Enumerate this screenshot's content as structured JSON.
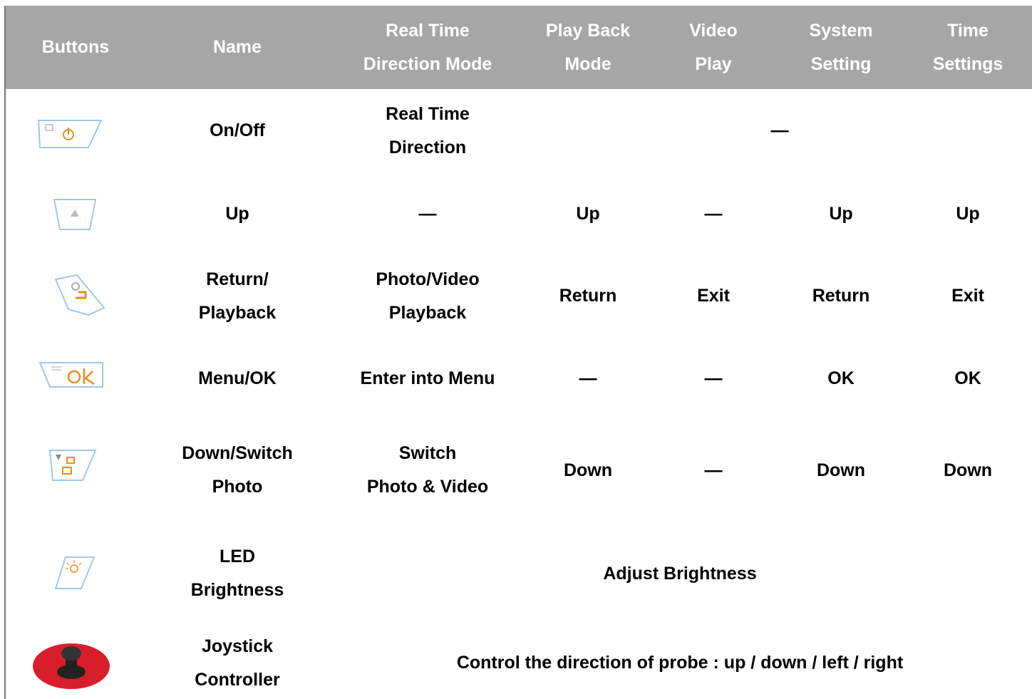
{
  "table": {
    "header": [
      [
        "Buttons"
      ],
      [
        "Name"
      ],
      [
        "Real Time",
        "Direction Mode"
      ],
      [
        "Play Back",
        "Mode"
      ],
      [
        "Video",
        "Play"
      ],
      [
        "System",
        "Setting"
      ],
      [
        "Time",
        "Settings"
      ]
    ],
    "rows": [
      {
        "name": [
          "On/Off"
        ],
        "cells": [
          {
            "text": [
              "Real Time",
              "Direction"
            ]
          },
          {
            "text": [
              "—"
            ],
            "span": 4
          }
        ]
      },
      {
        "name": [
          "Up"
        ],
        "cells": [
          {
            "text": [
              "—"
            ]
          },
          {
            "text": [
              "Up"
            ]
          },
          {
            "text": [
              "—"
            ]
          },
          {
            "text": [
              "Up"
            ]
          },
          {
            "text": [
              "Up"
            ]
          }
        ]
      },
      {
        "name": [
          "Return/",
          "Playback"
        ],
        "cells": [
          {
            "text": [
              "Photo/Video",
              "Playback"
            ]
          },
          {
            "text": [
              "Return"
            ]
          },
          {
            "text": [
              "Exit"
            ]
          },
          {
            "text": [
              "Return"
            ]
          },
          {
            "text": [
              "Exit"
            ]
          }
        ]
      },
      {
        "name": [
          "Menu/OK"
        ],
        "cells": [
          {
            "text": [
              "Enter into Menu"
            ]
          },
          {
            "text": [
              "—"
            ]
          },
          {
            "text": [
              "—"
            ]
          },
          {
            "text": [
              "OK"
            ]
          },
          {
            "text": [
              "OK"
            ]
          }
        ]
      },
      {
        "name": [
          "Down/Switch",
          "Photo"
        ],
        "cells": [
          {
            "text": [
              "Switch",
              "Photo & Video"
            ]
          },
          {
            "text": [
              "Down"
            ]
          },
          {
            "text": [
              "—"
            ]
          },
          {
            "text": [
              "Down"
            ]
          },
          {
            "text": [
              "Down"
            ]
          }
        ]
      },
      {
        "name": [
          "LED",
          "Brightness"
        ],
        "cells": [
          {
            "text": [
              "Adjust Brightness"
            ],
            "span": 5
          }
        ]
      },
      {
        "name": [
          "Joystick",
          "Controller"
        ],
        "cells": [
          {
            "text": [
              "Control the direction of probe : up / down / left / right"
            ],
            "span": 5
          }
        ]
      }
    ]
  }
}
